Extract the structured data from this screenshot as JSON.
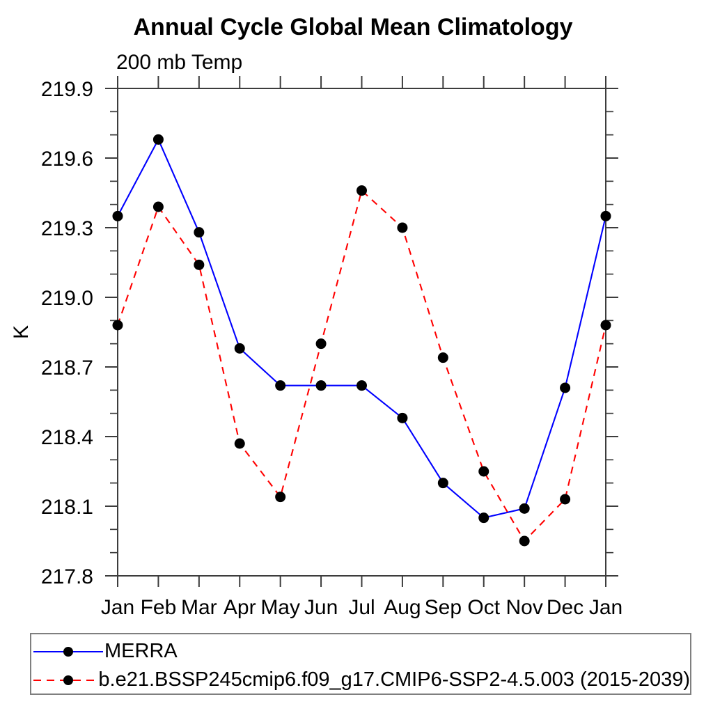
{
  "page": {
    "background": "#ffffff"
  },
  "chart_data": {
    "type": "line",
    "title": "Annual Cycle Global Mean Climatology",
    "subtitle": "200 mb Temp",
    "ylabel": "K",
    "x_categories": [
      "Jan",
      "Feb",
      "Mar",
      "Apr",
      "May",
      "Jun",
      "Jul",
      "Aug",
      "Sep",
      "Oct",
      "Nov",
      "Dec",
      "Jan"
    ],
    "ylim": [
      217.8,
      219.9
    ],
    "ytick_labels": [
      "217.8",
      "218.1",
      "218.4",
      "218.7",
      "219.0",
      "219.3",
      "219.6",
      "219.9"
    ],
    "ytick_major_step": 0.3,
    "ytick_minor_step": 0.1,
    "grid": false,
    "legend_position": "bottom-left-box",
    "axis_color": "#3c3c3c",
    "marker_color": "#000000",
    "series": [
      {
        "name": "MERRA",
        "color": "#0000ff",
        "line_style": "solid",
        "marker": "filled-circle",
        "values": [
          219.35,
          219.68,
          219.28,
          218.78,
          218.62,
          218.62,
          218.62,
          218.48,
          218.2,
          218.05,
          218.09,
          218.61,
          219.35
        ]
      },
      {
        "name": "b.e21.BSSP245cmip6.f09_g17.CMIP6-SSP2-4.5.003 (2015-2039)",
        "color": "#ff0000",
        "line_style": "dashed",
        "marker": "filled-circle",
        "values": [
          218.88,
          219.39,
          219.14,
          218.37,
          218.14,
          218.8,
          219.46,
          219.3,
          218.74,
          218.25,
          217.95,
          218.13,
          218.88
        ]
      }
    ]
  }
}
